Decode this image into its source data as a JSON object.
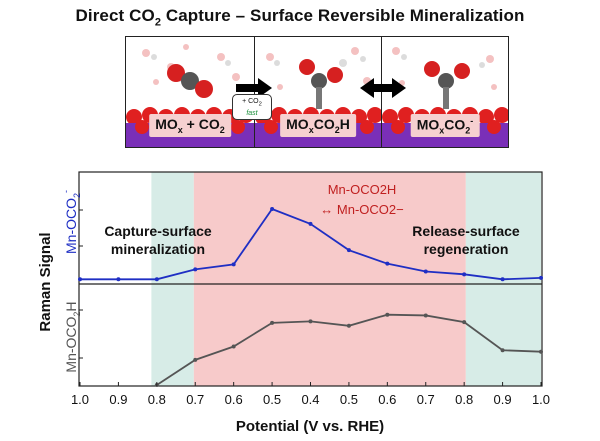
{
  "header": {
    "title_pre": "Direct CO",
    "title_sub": "2",
    "title_post": " Capture – Surface Reversible Mineralization"
  },
  "panels": [
    {
      "m": "MO",
      "s1": "x",
      "mid": " + CO",
      "s2": "2",
      "end": "",
      "sup": ""
    },
    {
      "m": "MO",
      "s1": "x",
      "mid": "CO",
      "s2": "2",
      "end": "H",
      "sup": ""
    },
    {
      "m": "MO",
      "s1": "x",
      "mid": "CO",
      "s2": "2",
      "end": "",
      "sup": "-"
    }
  ],
  "badge": {
    "line1": "+ CO",
    "line1_sub": "2",
    "line2": "fast"
  },
  "chart_data": [
    {
      "type": "line",
      "ylabel": "Mn-OCO2-",
      "ylabel_display": {
        "base": "Mn-OCO",
        "sub": "2",
        "sup": "-"
      },
      "annotations": {
        "capture": [
          "Capture-surface",
          "mineralization"
        ],
        "release": [
          "Release-surface",
          "regeneration"
        ],
        "species1": "Mn-OCO2H",
        "species2": "↔ Mn-OCO2−"
      },
      "x": [
        "1.0",
        "0.9",
        "0.8",
        "0.7",
        "0.6",
        "0.5",
        "0.4",
        "0.5",
        "0.6",
        "0.7",
        "0.8",
        "0.9",
        "1.0"
      ],
      "values": [
        0.01,
        0.01,
        0.01,
        0.15,
        0.22,
        1.0,
        0.79,
        0.42,
        0.23,
        0.12,
        0.08,
        0.01,
        0.03
      ],
      "series_color": "#1f2fc4",
      "regions": [
        {
          "from": 1.85,
          "to": 2.95,
          "color": "#d7ece7"
        },
        {
          "from": 2.95,
          "to": 10.0,
          "color": "#f7caca"
        },
        {
          "from": 10.0,
          "to": 11.95,
          "color": "#d7ece7"
        }
      ],
      "grid": false
    },
    {
      "type": "line",
      "ylabel": "Mn-OCO2H",
      "ylabel_display": {
        "base": "Mn-OCO",
        "sub": "2",
        "end": "H"
      },
      "x": [
        "1.0",
        "0.9",
        "0.8",
        "0.7",
        "0.6",
        "0.5",
        "0.4",
        "0.5",
        "0.6",
        "0.7",
        "0.8",
        "0.9",
        "1.0"
      ],
      "values": [
        null,
        null,
        0.0,
        0.34,
        0.52,
        0.84,
        0.86,
        0.8,
        0.95,
        0.94,
        0.85,
        0.47,
        0.45
      ],
      "series_color": "#555555",
      "grid": false
    }
  ],
  "axes": {
    "shared_y_title": "Raman Signal",
    "x_title": "Potential (V vs. RHE)",
    "x_ticks": [
      "1.0",
      "0.9",
      "0.8",
      "0.7",
      "0.6",
      "0.5",
      "0.4",
      "0.5",
      "0.6",
      "0.7",
      "0.8",
      "0.9",
      "1.0"
    ]
  }
}
